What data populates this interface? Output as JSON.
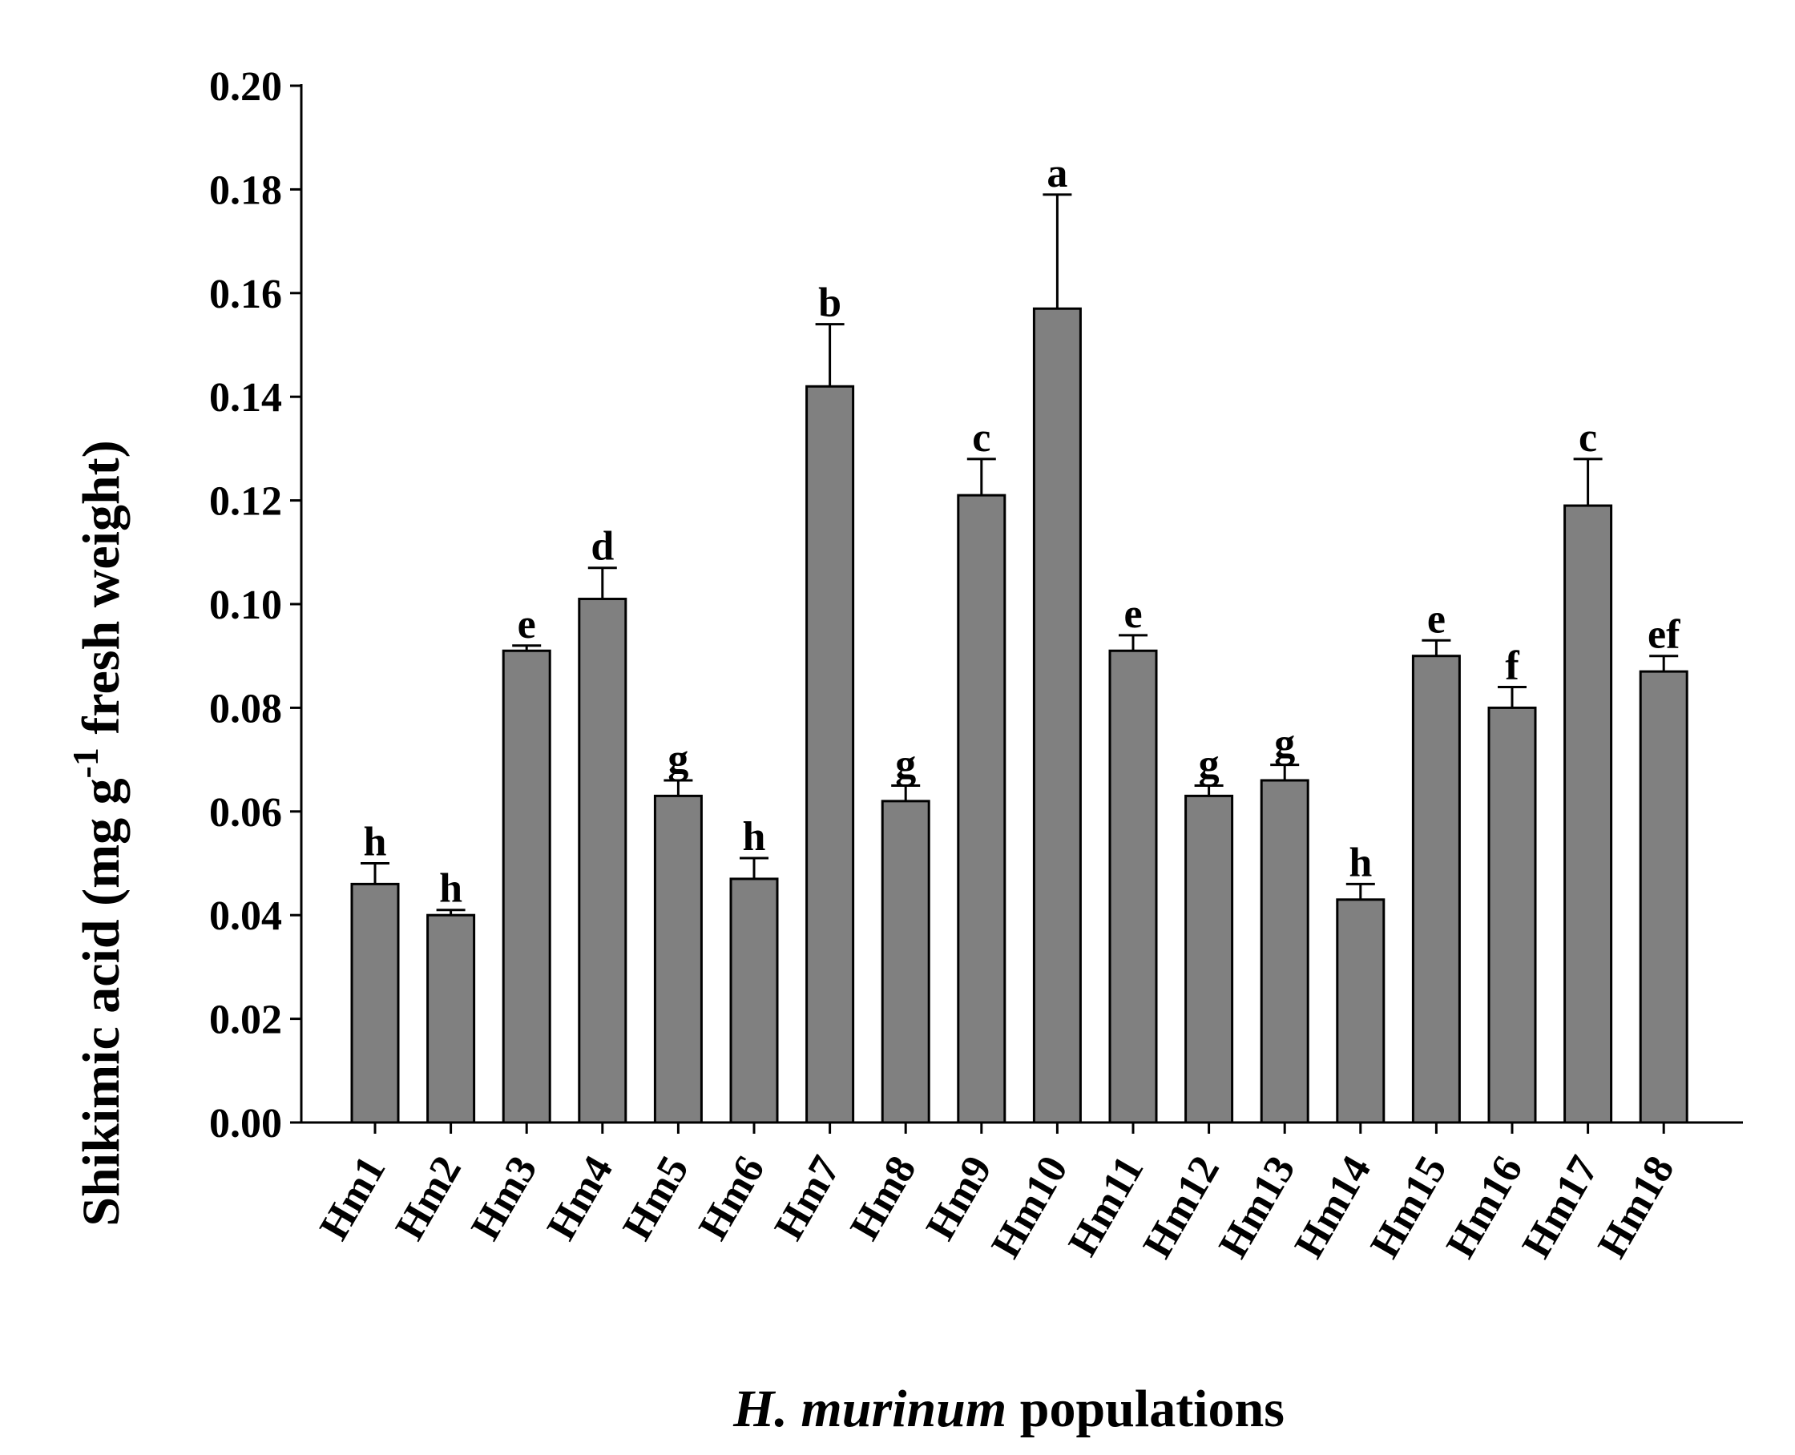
{
  "chart_data": {
    "type": "bar",
    "title": "",
    "xlabel": {
      "italic": "H. murinum",
      "rest": " populations"
    },
    "ylabel": {
      "main": "Shikimic acid (mg g",
      "sup": "-1",
      "rest": " fresh weight)"
    },
    "ylim": [
      0,
      0.2
    ],
    "yticks": [
      "0.00",
      "0.02",
      "0.04",
      "0.06",
      "0.08",
      "0.10",
      "0.12",
      "0.14",
      "0.16",
      "0.18",
      "0.20"
    ],
    "categories": [
      "Hm1",
      "Hm2",
      "Hm3",
      "Hm4",
      "Hm5",
      "Hm6",
      "Hm7",
      "Hm8",
      "Hm9",
      "Hm10",
      "Hm11",
      "Hm12",
      "Hm13",
      "Hm14",
      "Hm15",
      "Hm16",
      "Hm17",
      "Hm18"
    ],
    "values": [
      0.046,
      0.04,
      0.091,
      0.101,
      0.063,
      0.047,
      0.142,
      0.062,
      0.121,
      0.157,
      0.091,
      0.063,
      0.066,
      0.043,
      0.09,
      0.08,
      0.119,
      0.087
    ],
    "errors": [
      0.004,
      0.001,
      0.001,
      0.006,
      0.003,
      0.004,
      0.012,
      0.003,
      0.007,
      0.022,
      0.003,
      0.002,
      0.003,
      0.003,
      0.003,
      0.004,
      0.009,
      0.003
    ],
    "significance": [
      "h",
      "h",
      "e",
      "d",
      "g",
      "h",
      "b",
      "g",
      "c",
      "a",
      "e",
      "g",
      "g",
      "h",
      "e",
      "f",
      "c",
      "ef"
    ],
    "bar_color": "#808080",
    "grid": false,
    "legend": "none"
  }
}
